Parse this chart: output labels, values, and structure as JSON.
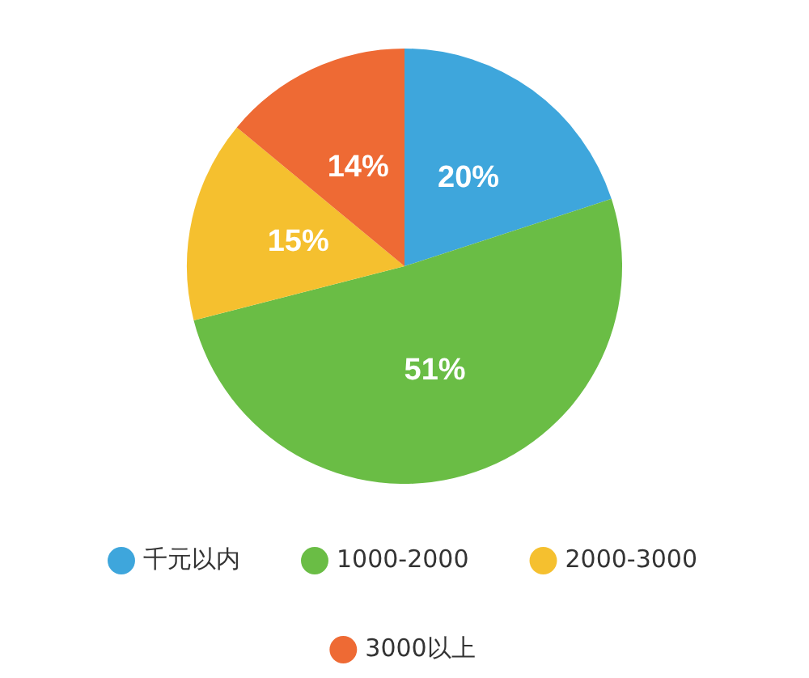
{
  "chart_data": {
    "type": "pie",
    "categories": [
      "千元以内",
      "1000-2000",
      "2000-3000",
      "3000以上"
    ],
    "values": [
      20,
      51,
      15,
      14
    ],
    "colors": [
      "#3ea6dc",
      "#6abd45",
      "#f5c02f",
      "#ee6a34"
    ],
    "value_labels": [
      "20%",
      "51%",
      "15%",
      "14%"
    ],
    "legend": "bottom"
  }
}
